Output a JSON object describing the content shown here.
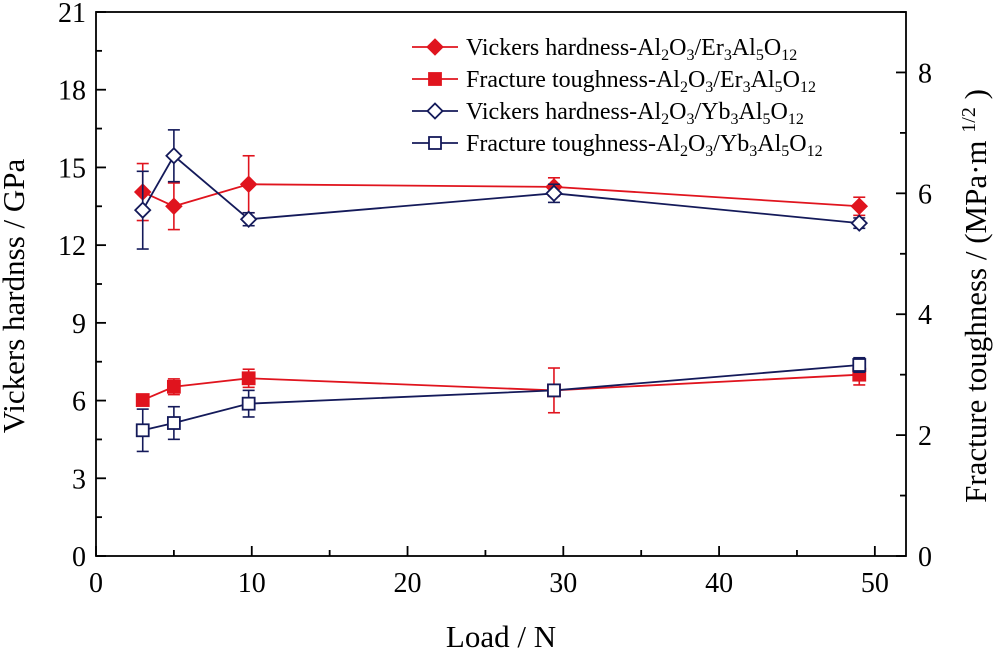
{
  "chart_data": {
    "type": "line",
    "xlabel": "Load / N",
    "ylabel_left": "Vickers hardnss / GPa",
    "ylabel_right_main": "Fracture toughness / (MPa·m",
    "ylabel_right_sup": "1/2",
    "ylabel_right_close": ")",
    "xlim": [
      0,
      52
    ],
    "ylim_left": [
      0,
      21
    ],
    "ylim_right": [
      0,
      9
    ],
    "x_ticks": [
      "0",
      "10",
      "20",
      "30",
      "40",
      "50"
    ],
    "y_left_ticks": [
      "0",
      "3",
      "6",
      "9",
      "12",
      "15",
      "18",
      "21"
    ],
    "y_right_ticks": [
      "0",
      "2",
      "4",
      "6",
      "8"
    ],
    "grid": false,
    "legend_position": "top-right",
    "series": [
      {
        "name_parts": [
          "Vickers hardness-Al",
          "2",
          "O",
          "3",
          "/Er",
          "3",
          "Al",
          "5",
          "O",
          "12"
        ],
        "axis": "left",
        "marker": "diamond",
        "filled": true,
        "color": "#e0141e",
        "x": [
          3,
          5,
          9.8,
          29.4,
          49
        ],
        "y": [
          14.05,
          13.5,
          14.35,
          14.25,
          13.5
        ],
        "err": [
          1.1,
          0.9,
          1.1,
          0.35,
          0.35
        ]
      },
      {
        "name_parts": [
          "Fracture toughness-Al",
          "2",
          "O",
          "3",
          "/Er",
          "3",
          "Al",
          "5",
          "O",
          "12"
        ],
        "axis": "right",
        "marker": "square",
        "filled": true,
        "color": "#e0141e",
        "x": [
          3,
          5,
          9.8,
          29.4,
          49
        ],
        "y": [
          2.58,
          2.8,
          2.94,
          2.74,
          3.0
        ],
        "err": [
          0.07,
          0.13,
          0.15,
          0.37,
          0.17
        ]
      },
      {
        "name_parts": [
          "Vickers hardness-Al",
          "2",
          "O",
          "3",
          "/Yb",
          "3",
          "Al",
          "5",
          "O",
          "12"
        ],
        "axis": "left",
        "marker": "diamond",
        "filled": false,
        "color": "#141a5a",
        "x": [
          3,
          5,
          9.8,
          29.4,
          49
        ],
        "y": [
          13.35,
          15.45,
          13.0,
          14.0,
          12.85
        ],
        "err": [
          1.5,
          1.0,
          0.25,
          0.35,
          0.2
        ]
      },
      {
        "name_parts": [
          "Fracture toughness-Al",
          "2",
          "O",
          "3",
          "/Yb",
          "3",
          "Al",
          "5",
          "O",
          "12"
        ],
        "axis": "right",
        "marker": "square",
        "filled": false,
        "color": "#141a5a",
        "x": [
          3,
          5,
          9.8,
          29.4,
          49
        ],
        "y": [
          2.08,
          2.2,
          2.52,
          2.74,
          3.16
        ],
        "err": [
          0.35,
          0.27,
          0.22,
          0.0,
          0.12
        ]
      }
    ]
  }
}
